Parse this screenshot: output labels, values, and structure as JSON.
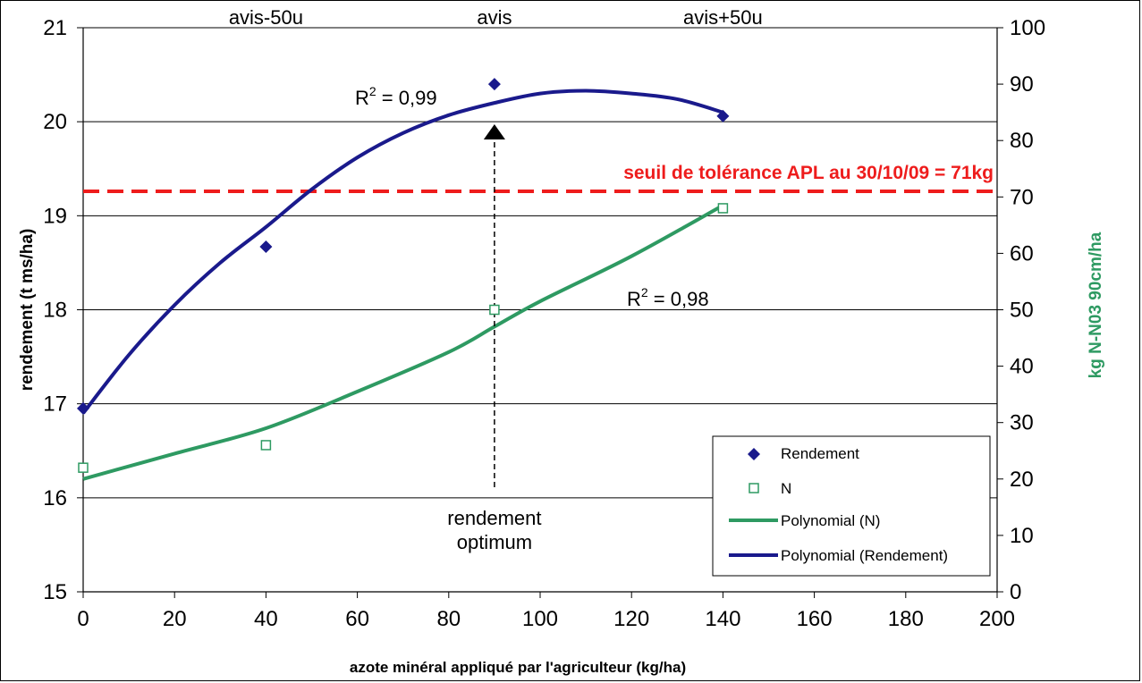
{
  "chart_data": {
    "type": "scatter",
    "xlabel": "azote minéral appliqué par l'agriculteur  (kg/ha)",
    "ylabel": "rendement (t ms/ha)",
    "y2label": "kg N-N03 90cm/ha",
    "xlim": [
      0,
      200
    ],
    "ylim": [
      15,
      21
    ],
    "y2lim": [
      0,
      100
    ],
    "x_ticks": [
      "0",
      "20",
      "40",
      "60",
      "80",
      "100",
      "120",
      "140",
      "160",
      "180",
      "200"
    ],
    "y_ticks": [
      "15",
      "16",
      "17",
      "18",
      "19",
      "20",
      "21"
    ],
    "y2_ticks": [
      "0",
      "10",
      "20",
      "30",
      "40",
      "50",
      "60",
      "70",
      "80",
      "90",
      "100"
    ],
    "grid": "horizontal",
    "legend_position": "bottom-right",
    "series": [
      {
        "name": "Rendement",
        "axis": "left",
        "marker": "diamond",
        "color": "#1a1a8c",
        "x": [
          0,
          40,
          90,
          140
        ],
        "y": [
          16.95,
          18.67,
          20.4,
          20.06
        ]
      },
      {
        "name": "N",
        "axis": "right",
        "marker": "open-square",
        "color": "#2e9a62",
        "x": [
          0,
          40,
          90,
          140
        ],
        "y": [
          22,
          26,
          50,
          68
        ]
      }
    ],
    "trendlines": [
      {
        "name": "Polynomial (N)",
        "axis": "right",
        "color": "#2e9a62",
        "x": [
          0,
          20,
          40,
          60,
          80,
          90,
          100,
          120,
          140
        ],
        "y": [
          20,
          24.5,
          29,
          35.5,
          42.5,
          47,
          51.5,
          59.5,
          68.5
        ]
      },
      {
        "name": "Polynomial (Rendement)",
        "axis": "left",
        "color": "#1a1a8c",
        "x": [
          0,
          10,
          20,
          30,
          40,
          50,
          60,
          70,
          80,
          90,
          100,
          110,
          120,
          130,
          140
        ],
        "y": [
          16.9,
          17.52,
          18.05,
          18.5,
          18.88,
          19.28,
          19.62,
          19.88,
          20.07,
          20.2,
          20.3,
          20.33,
          20.3,
          20.24,
          20.1
        ]
      }
    ],
    "threshold": {
      "label": "seuil de tolérance APL au 30/10/09 = 71kg",
      "axis": "right",
      "value": 71,
      "color": "#ee1c1c"
    },
    "r2_rendement": {
      "prefix": "R",
      "sup": "2",
      "suffix": " = 0,99"
    },
    "r2_n": {
      "prefix": "R",
      "sup": "2",
      "suffix": " = 0,98"
    },
    "top_labels": [
      {
        "x": 40,
        "text": "avis-50u"
      },
      {
        "x": 90,
        "text": "avis"
      },
      {
        "x": 140,
        "text": "avis+50u"
      }
    ],
    "optimum": {
      "x": 90,
      "line1": "rendement",
      "line2": "optimum"
    },
    "legend": [
      "Rendement",
      "N",
      "Polynomial (N)",
      "Polynomial (Rendement)"
    ]
  }
}
